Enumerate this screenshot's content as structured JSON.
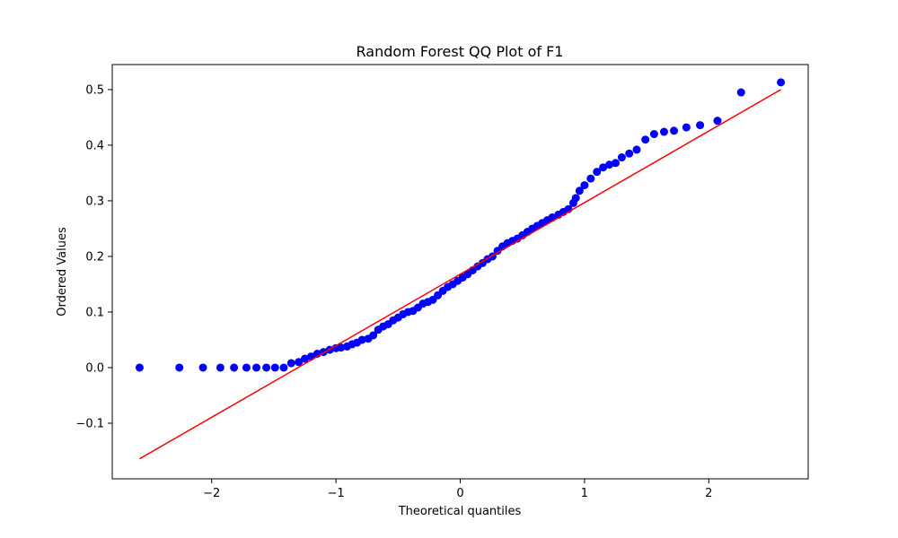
{
  "chart_data": {
    "type": "scatter",
    "title": "Random Forest QQ Plot of F1",
    "xlabel": "Theoretical quantiles",
    "ylabel": "Ordered Values",
    "xlim": [
      -2.8,
      2.8
    ],
    "ylim": [
      -0.2,
      0.545
    ],
    "xticks": [
      -2,
      -1,
      0,
      1,
      2
    ],
    "xtick_labels": [
      "−2",
      "−1",
      "0",
      "1",
      "2"
    ],
    "yticks": [
      -0.1,
      0.0,
      0.1,
      0.2,
      0.3,
      0.4,
      0.5
    ],
    "ytick_labels": [
      "−0.1",
      "0.0",
      "0.1",
      "0.2",
      "0.3",
      "0.4",
      "0.5"
    ],
    "grid": false,
    "colors": {
      "points": "#0000ff",
      "fit_line": "#ff0000"
    },
    "series": [
      {
        "kind": "points",
        "x": [
          -2.58,
          -2.26,
          -2.07,
          -1.93,
          -1.82,
          -1.72,
          -1.64,
          -1.56,
          -1.49,
          -1.42,
          -1.36,
          -1.3,
          -1.25,
          -1.2,
          -1.15,
          -1.1,
          -1.05,
          -1.0,
          -0.96,
          -0.91,
          -0.87,
          -0.83,
          -0.79,
          -0.74,
          -0.7,
          -0.66,
          -0.62,
          -0.58,
          -0.54,
          -0.5,
          -0.46,
          -0.42,
          -0.38,
          -0.34,
          -0.3,
          -0.26,
          -0.22,
          -0.18,
          -0.14,
          -0.1,
          -0.06,
          -0.02,
          0.02,
          0.06,
          0.1,
          0.14,
          0.18,
          0.22,
          0.26,
          0.3,
          0.34,
          0.38,
          0.42,
          0.46,
          0.5,
          0.54,
          0.58,
          0.62,
          0.66,
          0.7,
          0.74,
          0.79,
          0.83,
          0.87,
          0.91,
          0.93,
          0.96,
          1.0,
          1.05,
          1.1,
          1.15,
          1.2,
          1.25,
          1.3,
          1.36,
          1.42,
          1.49,
          1.56,
          1.64,
          1.72,
          1.82,
          1.93,
          2.07,
          2.26,
          2.58
        ],
        "y": [
          0.0,
          0.0,
          0.0,
          0.0,
          0.0,
          0.0,
          0.0,
          0.0,
          0.0,
          0.0,
          0.008,
          0.01,
          0.016,
          0.02,
          0.025,
          0.028,
          0.032,
          0.035,
          0.036,
          0.038,
          0.042,
          0.045,
          0.05,
          0.052,
          0.058,
          0.068,
          0.074,
          0.078,
          0.085,
          0.09,
          0.096,
          0.1,
          0.102,
          0.108,
          0.115,
          0.118,
          0.122,
          0.13,
          0.138,
          0.145,
          0.15,
          0.156,
          0.162,
          0.168,
          0.175,
          0.182,
          0.188,
          0.195,
          0.2,
          0.21,
          0.218,
          0.224,
          0.228,
          0.232,
          0.238,
          0.244,
          0.25,
          0.255,
          0.26,
          0.265,
          0.27,
          0.275,
          0.28,
          0.285,
          0.296,
          0.305,
          0.318,
          0.328,
          0.34,
          0.352,
          0.36,
          0.365,
          0.368,
          0.378,
          0.385,
          0.392,
          0.41,
          0.42,
          0.424,
          0.426,
          0.432,
          0.436,
          0.444,
          0.495,
          0.513
        ]
      },
      {
        "kind": "fit-line",
        "x": [
          -2.58,
          2.58
        ],
        "y": [
          -0.164,
          0.5
        ]
      }
    ]
  }
}
